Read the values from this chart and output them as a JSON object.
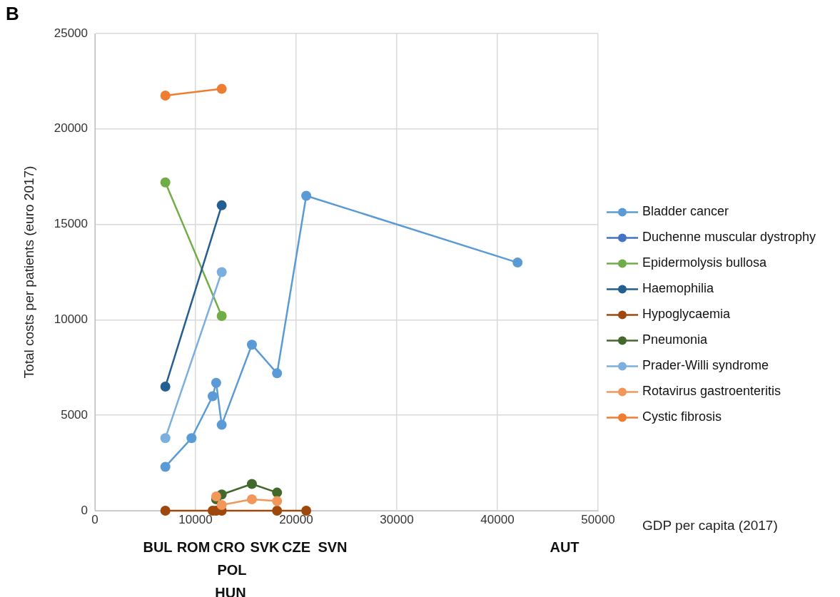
{
  "chart_data": {
    "type": "line",
    "title": "B",
    "xlabel": "GDP per capita (2017)",
    "ylabel": "Total costs per patients (euro 2017)",
    "xlim": [
      0,
      50000
    ],
    "xticks": [
      0,
      10000,
      20000,
      30000,
      40000,
      50000
    ],
    "ylim": [
      0,
      25000
    ],
    "yticks": [
      0,
      5000,
      10000,
      15000,
      20000,
      25000
    ],
    "grid": true,
    "legend": "right",
    "marker": "circle",
    "line_style": "solid",
    "series": [
      {
        "name": "Bladder cancer",
        "color": "#5b9bd5",
        "x": [
          7000,
          9600,
          11700,
          12050,
          12600,
          15600,
          18100,
          21000,
          42000
        ],
        "values": [
          2300,
          3800,
          6000,
          6700,
          4500,
          8700,
          7200,
          16500,
          13000
        ]
      },
      {
        "name": "Duchenne muscular dystrophy",
        "color": "#4472c4"
      },
      {
        "name": "Epidermolysis bullosa",
        "color": "#70ad47",
        "x": [
          7000,
          12600
        ],
        "values": [
          17200,
          10200
        ]
      },
      {
        "name": "Haemophilia",
        "color": "#255e91",
        "x": [
          7000,
          12600
        ],
        "values": [
          6500,
          16000
        ]
      },
      {
        "name": "Hypoglycaemia",
        "color": "#9e480e",
        "x": [
          7000,
          11700,
          12050,
          12600,
          18100,
          21000
        ],
        "values": [
          0,
          0,
          0,
          0,
          0,
          0
        ]
      },
      {
        "name": "Pneumonia",
        "color": "#43682b",
        "x": [
          12050,
          12600,
          15600,
          18100
        ],
        "values": [
          600,
          850,
          1400,
          950
        ]
      },
      {
        "name": "Prader-Willi syndrome",
        "color": "#7cafdd",
        "x": [
          7000,
          12600
        ],
        "values": [
          3800,
          12500
        ]
      },
      {
        "name": "Rotavirus gastroenteritis",
        "color": "#f1975a",
        "x": [
          12050,
          12600,
          15600,
          18100
        ],
        "values": [
          750,
          300,
          600,
          500
        ]
      },
      {
        "name": "Cystic fibrosis",
        "color": "#ed7d31",
        "x": [
          7000,
          12600
        ],
        "values": [
          21750,
          22100
        ]
      }
    ],
    "annotations": [
      "BUL",
      "ROM",
      "CRO",
      "POL",
      "HUN",
      "SVK",
      "CZE",
      "SVN",
      "AUT"
    ]
  }
}
